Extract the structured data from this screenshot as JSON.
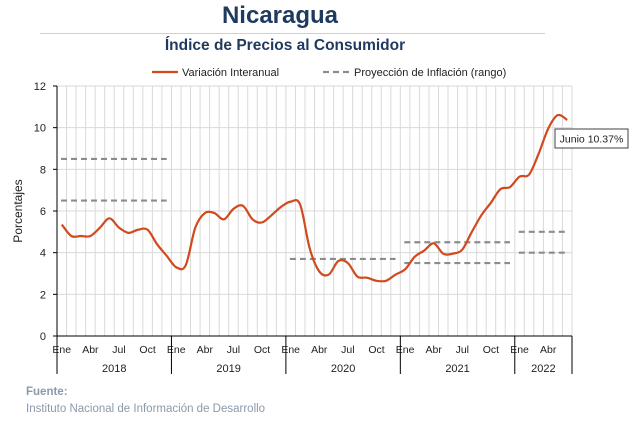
{
  "header": {
    "title": "Nicaragua",
    "subtitle": "Índice de Precios al Consumidor"
  },
  "source": {
    "label": "Fuente:",
    "text": "Instituto Nacional de Información de  Desarrollo"
  },
  "chart_data": {
    "type": "line",
    "ylabel": "Porcentajes",
    "ylim": [
      0,
      12
    ],
    "yticks": [
      0,
      2,
      4,
      6,
      8,
      10,
      12
    ],
    "grid": true,
    "legend_position": "top",
    "colors": {
      "inflation": "#d04a1e",
      "projection": "#8c8c8c",
      "grid": "#d9d9d9",
      "axis": "#000000"
    },
    "month_ticks": [
      "Ene",
      "Abr",
      "Jul",
      "Oct",
      "Ene",
      "Abr",
      "Jul",
      "Oct",
      "Ene",
      "Abr",
      "Jul",
      "Oct",
      "Ene",
      "Abr",
      "Jul",
      "Oct",
      "Ene",
      "Abr"
    ],
    "month_tick_index": [
      0,
      3,
      6,
      9,
      12,
      15,
      18,
      21,
      24,
      27,
      30,
      33,
      36,
      39,
      42,
      45,
      48,
      51
    ],
    "years": [
      "2018",
      "2019",
      "2020",
      "2021",
      "2022"
    ],
    "n_months": 54,
    "series": [
      {
        "name": "Variación Interanual",
        "style": "solid",
        "values": [
          5.35,
          4.8,
          4.8,
          4.8,
          5.2,
          5.65,
          5.2,
          4.95,
          5.1,
          5.1,
          4.4,
          3.85,
          3.3,
          3.4,
          5.2,
          5.9,
          5.9,
          5.6,
          6.1,
          6.25,
          5.6,
          5.45,
          5.8,
          6.2,
          6.45,
          6.3,
          4.2,
          3.1,
          2.95,
          3.6,
          3.5,
          2.85,
          2.8,
          2.65,
          2.65,
          2.95,
          3.2,
          3.8,
          4.1,
          4.45,
          3.95,
          3.95,
          4.15,
          5.0,
          5.8,
          6.4,
          7.05,
          7.15,
          7.65,
          7.75,
          8.75,
          9.95,
          10.6,
          10.37
        ]
      },
      {
        "name": "Proyección de Inflación (rango)",
        "style": "dashed",
        "segments": [
          {
            "x_start": 0,
            "x_end": 11,
            "values": [
              8.5,
              6.5
            ]
          },
          {
            "x_start": 24,
            "x_end": 35,
            "values": [
              3.7
            ]
          },
          {
            "x_start": 36,
            "x_end": 47,
            "values": [
              4.5,
              3.5
            ]
          },
          {
            "x_start": 48,
            "x_end": 53,
            "values": [
              5.0,
              4.0
            ]
          }
        ]
      }
    ],
    "annotation": {
      "text": "Junio 10.37%",
      "index": 53
    }
  }
}
